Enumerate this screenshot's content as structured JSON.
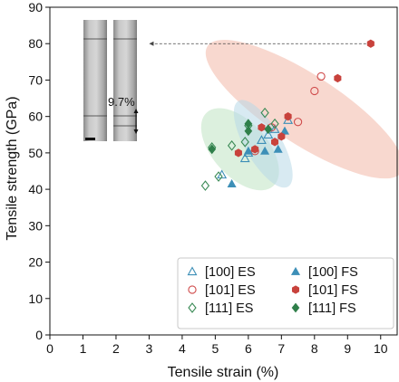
{
  "chart_data": {
    "type": "scatter",
    "xlabel": "Tensile strain (%)",
    "ylabel": "Tensile strength (GPa)",
    "xlim": [
      0,
      10.5
    ],
    "ylim": [
      0,
      90
    ],
    "xticks": [
      0,
      1,
      2,
      3,
      4,
      5,
      6,
      7,
      8,
      9,
      10
    ],
    "yticks": [
      0,
      10,
      20,
      30,
      40,
      50,
      60,
      70,
      80,
      90
    ],
    "legend_position": "bottom-right",
    "legend_columns": 2,
    "series": [
      {
        "name": "[100] ES",
        "marker": "triangle",
        "filled": false,
        "color": "#3d8fb7",
        "points": [
          [
            5.2,
            44
          ],
          [
            5.9,
            48.5
          ],
          [
            6.0,
            50
          ],
          [
            6.4,
            53.5
          ],
          [
            6.6,
            55
          ],
          [
            6.8,
            56.5
          ],
          [
            7.2,
            59
          ]
        ]
      },
      {
        "name": "[101] ES",
        "marker": "circle",
        "filled": false,
        "color": "#d04c4c",
        "points": [
          [
            6.2,
            50.5
          ],
          [
            6.7,
            57
          ],
          [
            7.5,
            58.5
          ],
          [
            8.0,
            67
          ],
          [
            8.2,
            71
          ]
        ]
      },
      {
        "name": "[111] ES",
        "marker": "diamond",
        "filled": false,
        "color": "#3a8a55",
        "points": [
          [
            4.7,
            41
          ],
          [
            5.1,
            43.5
          ],
          [
            4.9,
            51.5
          ],
          [
            5.5,
            52
          ],
          [
            5.9,
            53
          ],
          [
            6.0,
            57.5
          ],
          [
            6.5,
            61
          ],
          [
            6.8,
            58
          ]
        ]
      },
      {
        "name": "[100] FS",
        "marker": "triangle",
        "filled": true,
        "color": "#3d8fb7",
        "points": [
          [
            5.5,
            41.5
          ],
          [
            6.0,
            50.5
          ],
          [
            6.5,
            50.5
          ],
          [
            6.9,
            51
          ],
          [
            7.1,
            56
          ]
        ]
      },
      {
        "name": "[101] FS",
        "marker": "hexagon",
        "filled": true,
        "color": "#c8423c",
        "points": [
          [
            5.7,
            50
          ],
          [
            6.2,
            51
          ],
          [
            6.4,
            57
          ],
          [
            6.8,
            53
          ],
          [
            7.0,
            54.5
          ],
          [
            7.2,
            60
          ],
          [
            8.7,
            70.5
          ],
          [
            9.7,
            80
          ]
        ]
      },
      {
        "name": "[111] FS",
        "marker": "diamond",
        "filled": true,
        "color": "#2f7f4a",
        "points": [
          [
            4.9,
            51
          ],
          [
            6.0,
            56
          ],
          [
            6.0,
            58
          ],
          [
            6.6,
            56.5
          ]
        ]
      }
    ],
    "regions": [
      {
        "name": "red",
        "color": "#f2b8a8",
        "cx": 7.7,
        "cy": 62,
        "rx": 3.5,
        "ry": 9.5,
        "angle_deg": 33
      },
      {
        "name": "green",
        "color": "#bfe3c3",
        "cx": 5.75,
        "cy": 51,
        "rx": 1.5,
        "ry": 7.5,
        "angle_deg": 48
      },
      {
        "name": "blue",
        "color": "#b8d8e8",
        "cx": 6.45,
        "cy": 52.5,
        "rx": 1.5,
        "ry": 5.0,
        "angle_deg": 60
      }
    ],
    "inset": {
      "annotation": "9.7%",
      "arrow_from": [
        9.7,
        80
      ],
      "arrow_to": [
        3.0,
        80
      ]
    }
  }
}
